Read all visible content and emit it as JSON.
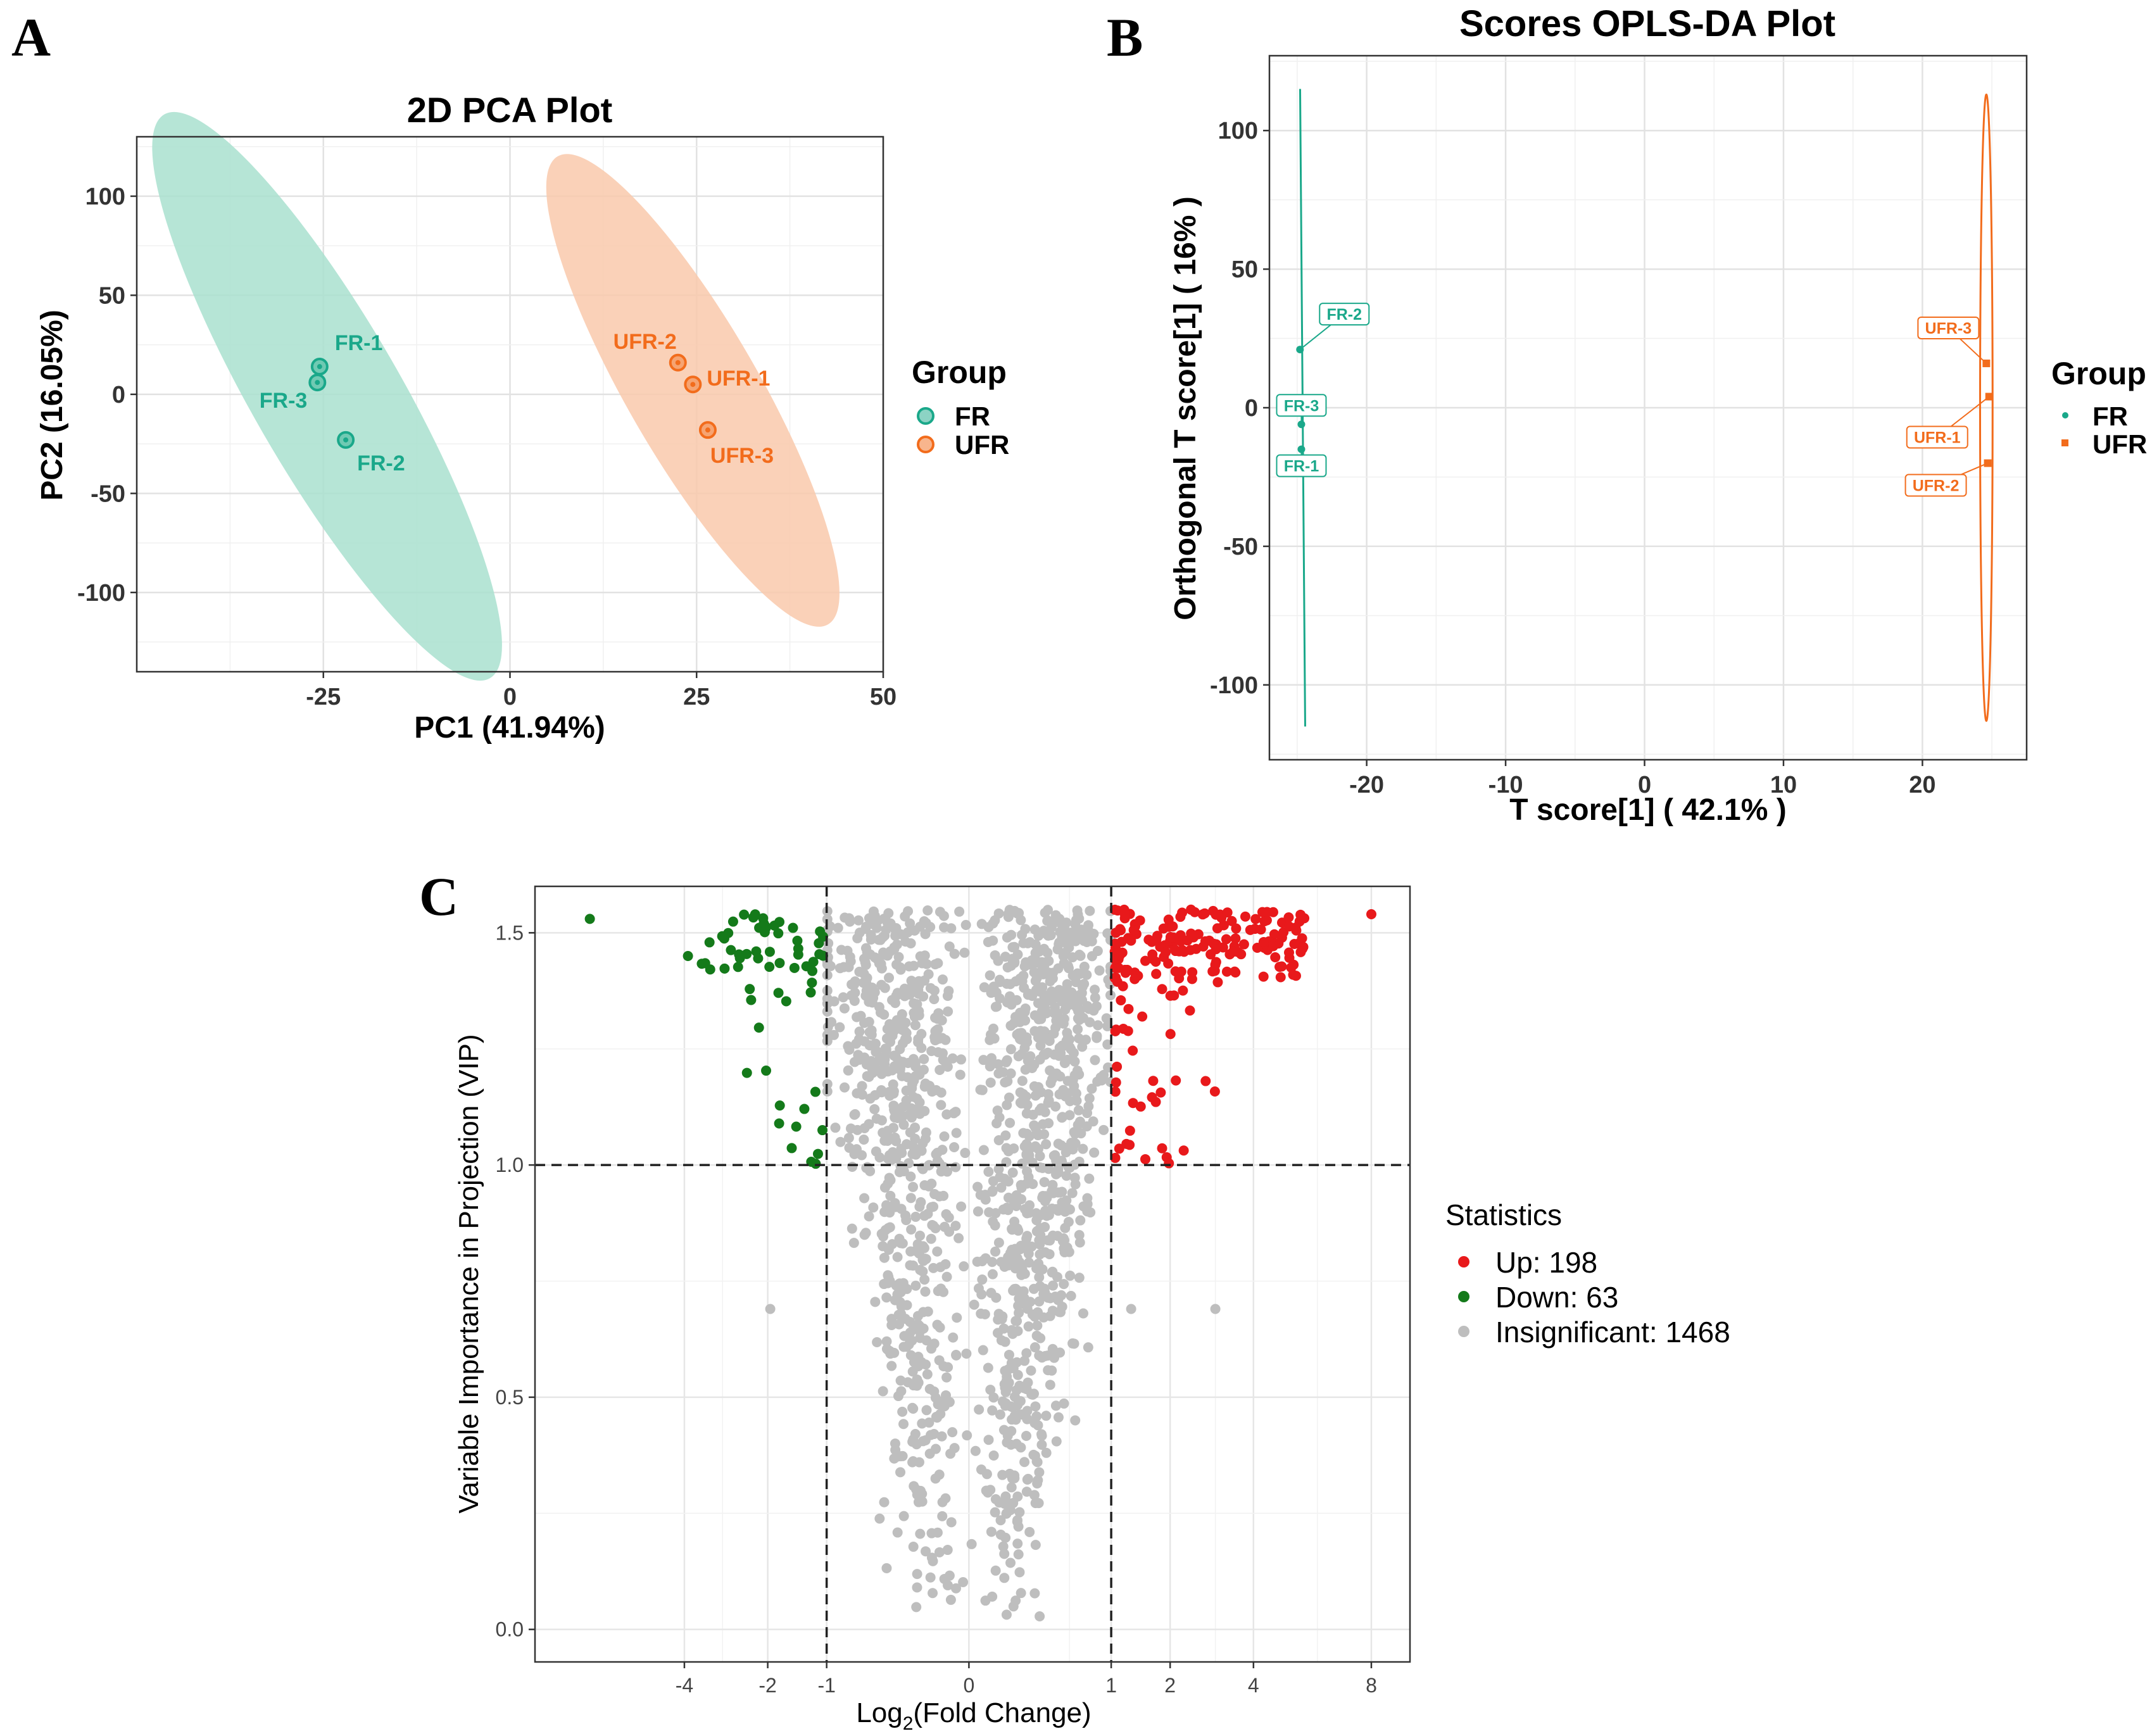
{
  "panel_labels": [
    "A",
    "B",
    "C"
  ],
  "colors": {
    "fr": "#1aa88a",
    "fr_ellipse": "#a9e0cf",
    "ufr": "#f26c1c",
    "ufr_ellipse": "#f9c9ab",
    "up": "#e8191b",
    "down": "#147a1a",
    "insig": "#bebebe",
    "grid": "#e6e6e6",
    "axis": "#333333"
  },
  "chart_data": [
    {
      "id": "pca",
      "type": "scatter",
      "title": "2D PCA Plot",
      "xlabel": "PC1 (41.94%)",
      "ylabel": "PC2 (16.05%)",
      "xlim": [
        -50,
        50
      ],
      "ylim": [
        -140,
        130
      ],
      "xticks": [
        -25,
        0,
        25,
        50
      ],
      "yticks": [
        100,
        50,
        0,
        -50,
        -100
      ],
      "legend_title": "Group",
      "legend": [
        "FR",
        "UFR"
      ],
      "series": [
        {
          "name": "FR",
          "points": [
            {
              "label": "FR-1",
              "x": -25.5,
              "y": 14
            },
            {
              "label": "FR-3",
              "x": -25.8,
              "y": 6
            },
            {
              "label": "FR-2",
              "x": -22,
              "y": -23
            }
          ],
          "ellipse": {
            "cx": -24.5,
            "cy": -1,
            "rx": 18,
            "ry": 106,
            "angle": 42
          }
        },
        {
          "name": "UFR",
          "points": [
            {
              "label": "UFR-2",
              "x": 22.5,
              "y": 16
            },
            {
              "label": "UFR-1",
              "x": 24.5,
              "y": 5
            },
            {
              "label": "UFR-3",
              "x": 26.5,
              "y": -18
            }
          ],
          "ellipse": {
            "cx": 24.5,
            "cy": 2,
            "rx": 16,
            "ry": 88,
            "angle": 40
          }
        }
      ]
    },
    {
      "id": "oplsda",
      "type": "scatter",
      "title": "Scores OPLS-DA Plot",
      "xlabel": "T score[1] ( 42.1% )",
      "ylabel": "Orthogonal T score[1] ( 16% )",
      "xlim": [
        -27,
        27.5
      ],
      "ylim": [
        -127,
        127
      ],
      "xticks": [
        -20,
        -10,
        0,
        10,
        20
      ],
      "yticks": [
        100,
        50,
        0,
        -50,
        -100
      ],
      "legend_title": "Group",
      "legend": [
        "FR",
        "UFR"
      ],
      "series": [
        {
          "name": "FR",
          "points": [
            {
              "label": "FR-2",
              "x": -24.8,
              "y": 21
            },
            {
              "label": "FR-3",
              "x": -24.7,
              "y": -6
            },
            {
              "label": "FR-1",
              "x": -24.7,
              "y": -15
            }
          ],
          "ellipse": {
            "cx": -24.7,
            "cy": 0,
            "rx": 0.45,
            "ry": 115
          }
        },
        {
          "name": "UFR",
          "points": [
            {
              "label": "UFR-3",
              "x": 24.6,
              "y": 16
            },
            {
              "label": "UFR-1",
              "x": 24.8,
              "y": 4
            },
            {
              "label": "UFR-2",
              "x": 24.7,
              "y": -20
            }
          ],
          "ellipse": {
            "cx": 24.6,
            "cy": 0,
            "rx": 0.45,
            "ry": 113
          }
        }
      ]
    },
    {
      "id": "volcano",
      "type": "scatter",
      "xlabel_prefix": "Log",
      "xlabel_sub": "2",
      "xlabel_suffix": "(Fold Change)",
      "ylabel": "Variable Importance in Projection (VIP)",
      "yticks": [
        "0.0",
        "0.5",
        "1.0",
        "1.5"
      ],
      "ytick_values": [
        0,
        0.5,
        1.0,
        1.5
      ],
      "xticks": [
        "-4",
        "-2",
        "-1",
        "0",
        "1",
        "2",
        "4",
        "8"
      ],
      "xtick_values": [
        -4,
        -2,
        -1,
        0,
        1,
        2,
        4,
        8
      ],
      "x_transform": "signed-sqrt",
      "xlim_transformed": [
        -3.05,
        3.1
      ],
      "ylim": [
        -0.07,
        1.6
      ],
      "thresholds": {
        "fold_change": [
          -1,
          1
        ],
        "vip": 1.0
      },
      "legend_title": "Statistics",
      "legend": [
        "Up: 198",
        "Down: 63",
        "Insignificant: 1468"
      ],
      "counts": {
        "up": 198,
        "down": 63,
        "insig": 1468
      },
      "outliers": [
        {
          "x": -7.1,
          "y": 1.53,
          "group": "down"
        },
        {
          "x": -3.9,
          "y": 1.45,
          "group": "down"
        },
        {
          "x": -1.95,
          "y": 0.69,
          "group": "insig"
        },
        {
          "x": 1.3,
          "y": 0.69,
          "group": "insig"
        },
        {
          "x": 3.0,
          "y": 0.69,
          "group": "insig"
        },
        {
          "x": 8.0,
          "y": 1.54,
          "group": "up"
        }
      ]
    }
  ]
}
